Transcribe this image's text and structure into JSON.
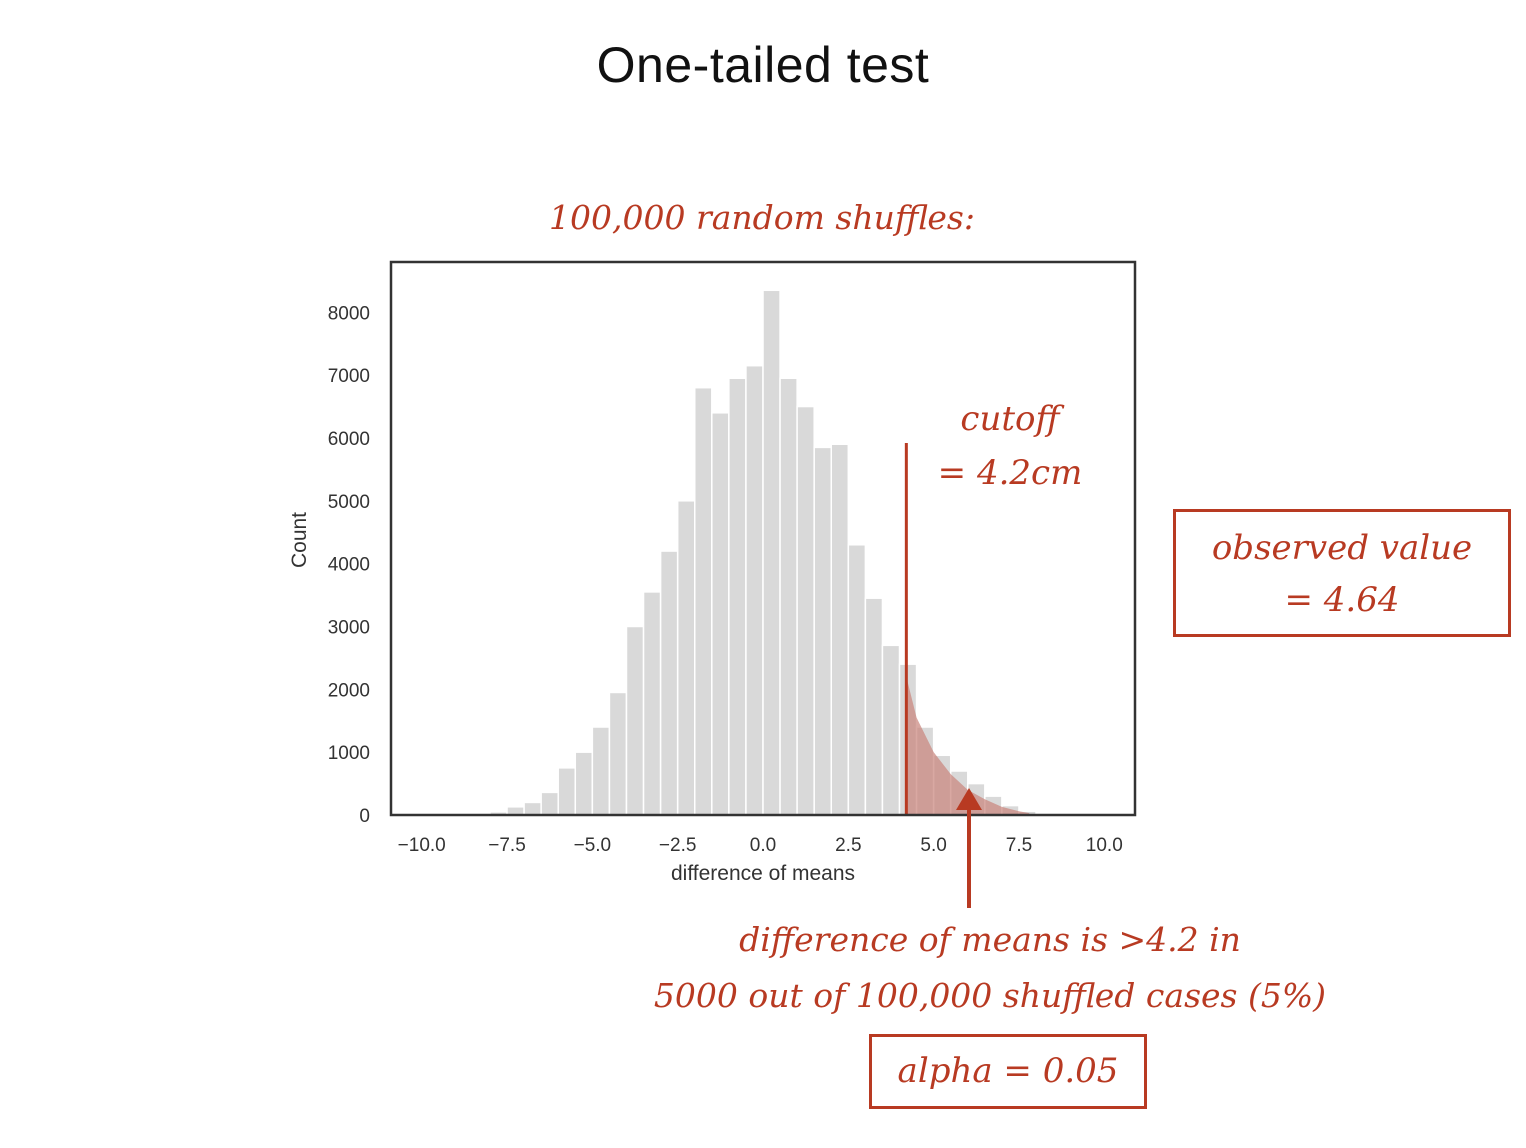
{
  "slide": {
    "title": "One-tailed test"
  },
  "annotations": {
    "chart_heading": "100,000 random shuffles:",
    "cutoff_line1": "cutoff",
    "cutoff_line2": "= 4.2cm",
    "observed_line1": "observed value",
    "observed_line2": "= 4.64",
    "bottom_line1": "difference of means is >4.2 in",
    "bottom_line2": "5000 out of 100,000 shuffled cases (5%)",
    "alpha": "alpha = 0.05"
  },
  "colors": {
    "bar": "#d9d9d9",
    "accent": "#b83a22",
    "tail_fill": "#c9837a",
    "axis": "#333333"
  },
  "chart_data": {
    "type": "bar",
    "xlabel": "difference of means",
    "ylabel": "Count",
    "xlim": [
      -10.9,
      10.9
    ],
    "ylim": [
      0,
      8800
    ],
    "x_ticks": [
      -10.0,
      -7.5,
      -5.0,
      -2.5,
      0.0,
      2.5,
      5.0,
      7.5,
      10.0
    ],
    "x_tick_labels": [
      "−10.0",
      "−7.5",
      "−5.0",
      "−2.5",
      "0.0",
      "2.5",
      "5.0",
      "7.5",
      "10.0"
    ],
    "y_ticks": [
      0,
      1000,
      2000,
      3000,
      4000,
      5000,
      6000,
      7000,
      8000
    ],
    "y_tick_labels": [
      "0",
      "1000",
      "2000",
      "3000",
      "4000",
      "5000",
      "6000",
      "7000",
      "8000"
    ],
    "grid": false,
    "bin_width": 0.5,
    "bin_lefts": [
      -8.0,
      -7.5,
      -7.0,
      -6.5,
      -6.0,
      -5.5,
      -5.0,
      -4.5,
      -4.0,
      -3.5,
      -3.0,
      -2.5,
      -2.0,
      -1.5,
      -1.0,
      -0.5,
      0.0,
      0.5,
      1.0,
      1.5,
      2.0,
      2.5,
      3.0,
      3.5,
      4.0,
      4.5,
      5.0,
      5.5,
      6.0,
      6.5,
      7.0,
      7.5
    ],
    "values": [
      50,
      130,
      200,
      360,
      750,
      1000,
      1400,
      1950,
      3000,
      3550,
      4200,
      5000,
      6800,
      6400,
      6950,
      7150,
      8350,
      6950,
      6500,
      5850,
      5900,
      4300,
      3450,
      2700,
      2400,
      1400,
      950,
      700,
      500,
      300,
      150,
      60
    ],
    "cutoff": 4.2,
    "tail": {
      "x": [
        4.2,
        4.5,
        5.0,
        5.5,
        6.0,
        6.5,
        7.0,
        7.5,
        7.8
      ],
      "y": [
        2200,
        1550,
        1000,
        650,
        400,
        250,
        130,
        60,
        30
      ]
    }
  }
}
